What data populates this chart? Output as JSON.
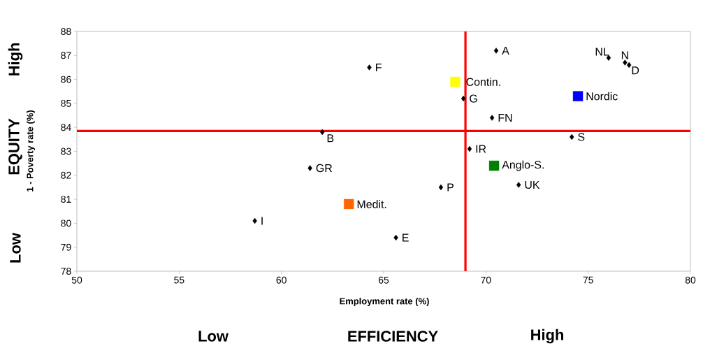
{
  "chart_data": {
    "type": "scatter",
    "xlabel": "Employment rate (%)",
    "ylabel": "1 - Poverty rate (%)",
    "xlim": [
      50,
      80
    ],
    "xticks": [
      50,
      55,
      60,
      65,
      70,
      75,
      80
    ],
    "ylim": [
      78,
      88
    ],
    "yticks": [
      78,
      79,
      80,
      81,
      82,
      83,
      84,
      85,
      86,
      87,
      88
    ],
    "series": [
      {
        "name": "A",
        "color": "#000000",
        "marker": "diamond",
        "x": [
          70.5
        ],
        "values": [
          87.2
        ]
      },
      {
        "name": "NL",
        "color": "#000000",
        "marker": "diamond",
        "x": [
          76.0
        ],
        "values": [
          86.9
        ]
      },
      {
        "name": "N",
        "color": "#000000",
        "marker": "diamond",
        "x": [
          76.8
        ],
        "values": [
          86.7
        ]
      },
      {
        "name": "D",
        "color": "#000000",
        "marker": "diamond",
        "x": [
          77.0
        ],
        "values": [
          86.6
        ]
      },
      {
        "name": "F",
        "color": "#000000",
        "marker": "diamond",
        "x": [
          64.3
        ],
        "values": [
          86.5
        ]
      },
      {
        "name": "Contin.",
        "color": "#ffff00",
        "marker": "square",
        "x": [
          68.5
        ],
        "values": [
          85.9
        ]
      },
      {
        "name": "G",
        "color": "#000000",
        "marker": "diamond",
        "x": [
          68.9
        ],
        "values": [
          85.2
        ]
      },
      {
        "name": "Nordic",
        "color": "#0000ff",
        "marker": "square",
        "x": [
          74.5
        ],
        "values": [
          85.3
        ]
      },
      {
        "name": "FN",
        "color": "#000000",
        "marker": "diamond",
        "x": [
          70.3
        ],
        "values": [
          84.4
        ]
      },
      {
        "name": "B",
        "color": "#000000",
        "marker": "diamond",
        "x": [
          62.0
        ],
        "values": [
          83.8
        ]
      },
      {
        "name": "S",
        "color": "#000000",
        "marker": "diamond",
        "x": [
          74.2
        ],
        "values": [
          83.6
        ]
      },
      {
        "name": "IR",
        "color": "#000000",
        "marker": "diamond",
        "x": [
          69.2
        ],
        "values": [
          83.1
        ]
      },
      {
        "name": "Anglo-S.",
        "color": "#008000",
        "marker": "square",
        "x": [
          70.4
        ],
        "values": [
          82.4
        ]
      },
      {
        "name": "GR",
        "color": "#000000",
        "marker": "diamond",
        "x": [
          61.4
        ],
        "values": [
          82.3
        ]
      },
      {
        "name": "UK",
        "color": "#000000",
        "marker": "diamond",
        "x": [
          71.6
        ],
        "values": [
          81.6
        ]
      },
      {
        "name": "P",
        "color": "#000000",
        "marker": "diamond",
        "x": [
          67.8
        ],
        "values": [
          81.5
        ]
      },
      {
        "name": "Medit.",
        "color": "#ff6600",
        "marker": "square",
        "x": [
          63.3
        ],
        "values": [
          80.8
        ]
      },
      {
        "name": "I",
        "color": "#000000",
        "marker": "diamond",
        "x": [
          58.7
        ],
        "values": [
          80.1
        ]
      },
      {
        "name": "E",
        "color": "#000000",
        "marker": "diamond",
        "x": [
          65.6
        ],
        "values": [
          79.4
        ]
      }
    ],
    "ref_lines": [
      {
        "axis": "x",
        "value": 69.0,
        "color": "#ff0000"
      },
      {
        "axis": "y",
        "value": 83.85,
        "color": "#ff0000"
      }
    ],
    "annotations": [
      "Low",
      "EFFICIENCY",
      "High",
      "Low",
      "EQUITY",
      "High"
    ]
  }
}
